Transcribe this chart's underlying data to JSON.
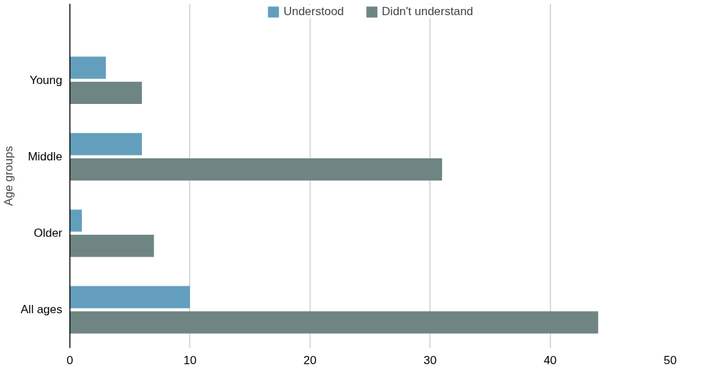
{
  "chart_data": {
    "type": "bar",
    "orientation": "horizontal",
    "ylabel": "Age groups",
    "categories": [
      "Young",
      "Middle",
      "Older",
      "All ages"
    ],
    "series": [
      {
        "name": "Understood",
        "color": "#639fbd",
        "values": [
          3,
          6,
          1,
          10
        ]
      },
      {
        "name": "Didn't understand",
        "color": "#6e8583",
        "values": [
          6,
          31,
          7,
          44
        ]
      }
    ],
    "xlim": [
      0,
      50
    ],
    "xticks": [
      0,
      10,
      20,
      30,
      40,
      50
    ],
    "grid": "x",
    "legend": "top"
  }
}
